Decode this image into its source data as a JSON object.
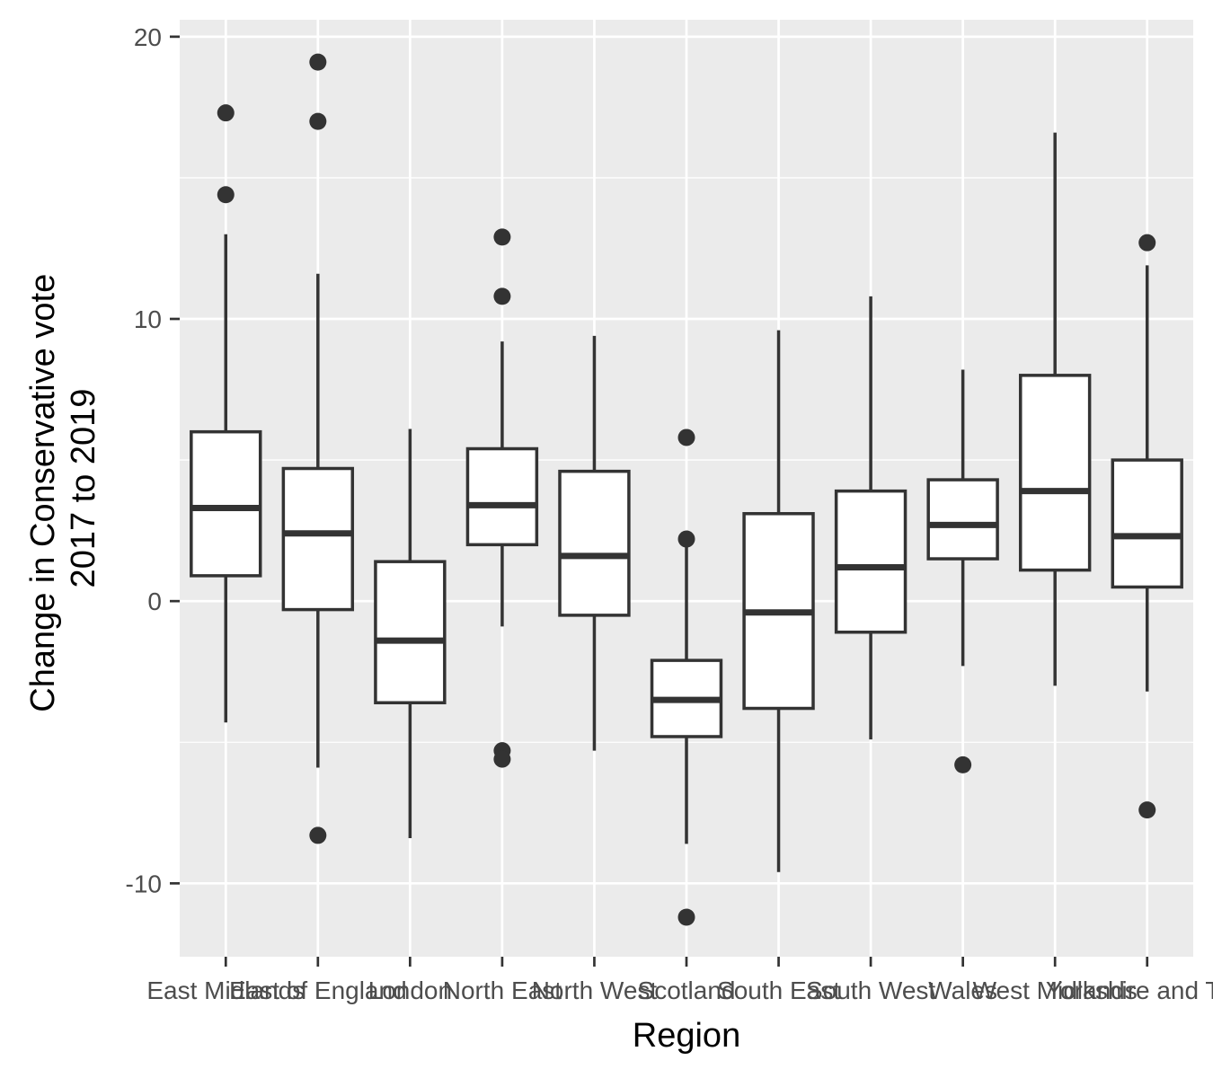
{
  "chart_data": {
    "type": "boxplot",
    "xlabel": "Region",
    "ylabel_lines": [
      "Change in Conservative vote",
      "2017 to 2019"
    ],
    "ylim": [
      -12.6,
      20.6
    ],
    "y_ticks": [
      -10,
      0,
      10,
      20
    ],
    "y_tick_labels": [
      "-10",
      "0",
      "10",
      "20"
    ],
    "grid": true,
    "categories": [
      "East Midlands",
      "East of England",
      "London",
      "North East",
      "North West",
      "Scotland",
      "South East",
      "South West",
      "Wales",
      "West Midlands",
      "Yorkshire and The"
    ],
    "boxes": [
      {
        "q1": 0.9,
        "median": 3.3,
        "q3": 6.0,
        "whisker_low": -4.3,
        "whisker_high": 13.0,
        "outliers": [
          17.3,
          14.4
        ]
      },
      {
        "q1": -0.3,
        "median": 2.4,
        "q3": 4.7,
        "whisker_low": -5.9,
        "whisker_high": 11.6,
        "outliers": [
          19.1,
          17.0,
          -8.3
        ]
      },
      {
        "q1": -3.6,
        "median": -1.4,
        "q3": 1.4,
        "whisker_low": -8.4,
        "whisker_high": 6.1,
        "outliers": []
      },
      {
        "q1": 2.0,
        "median": 3.4,
        "q3": 5.4,
        "whisker_low": -0.9,
        "whisker_high": 9.2,
        "outliers": [
          12.9,
          10.8,
          -5.3,
          -5.6
        ]
      },
      {
        "q1": -0.5,
        "median": 1.6,
        "q3": 4.6,
        "whisker_low": -5.3,
        "whisker_high": 9.4,
        "outliers": []
      },
      {
        "q1": -4.8,
        "median": -3.5,
        "q3": -2.1,
        "whisker_low": -8.6,
        "whisker_high": 2.0,
        "outliers": [
          5.8,
          2.2,
          -11.2
        ]
      },
      {
        "q1": -3.8,
        "median": -0.4,
        "q3": 3.1,
        "whisker_low": -9.6,
        "whisker_high": 9.6,
        "outliers": []
      },
      {
        "q1": -1.1,
        "median": 1.2,
        "q3": 3.9,
        "whisker_low": -4.9,
        "whisker_high": 10.8,
        "outliers": []
      },
      {
        "q1": 1.5,
        "median": 2.7,
        "q3": 4.3,
        "whisker_low": -2.3,
        "whisker_high": 8.2,
        "outliers": [
          -5.8
        ]
      },
      {
        "q1": 1.1,
        "median": 3.9,
        "q3": 8.0,
        "whisker_low": -3.0,
        "whisker_high": 16.6,
        "outliers": []
      },
      {
        "q1": 0.5,
        "median": 2.3,
        "q3": 5.0,
        "whisker_low": -3.2,
        "whisker_high": 11.9,
        "outliers": [
          12.7,
          -7.4
        ]
      }
    ],
    "colors": {
      "panel": "#ebebeb",
      "grid": "#ffffff",
      "box_fill": "#ffffff",
      "box_line": "#333333",
      "outlier": "#333333",
      "tick": "#333333"
    }
  }
}
